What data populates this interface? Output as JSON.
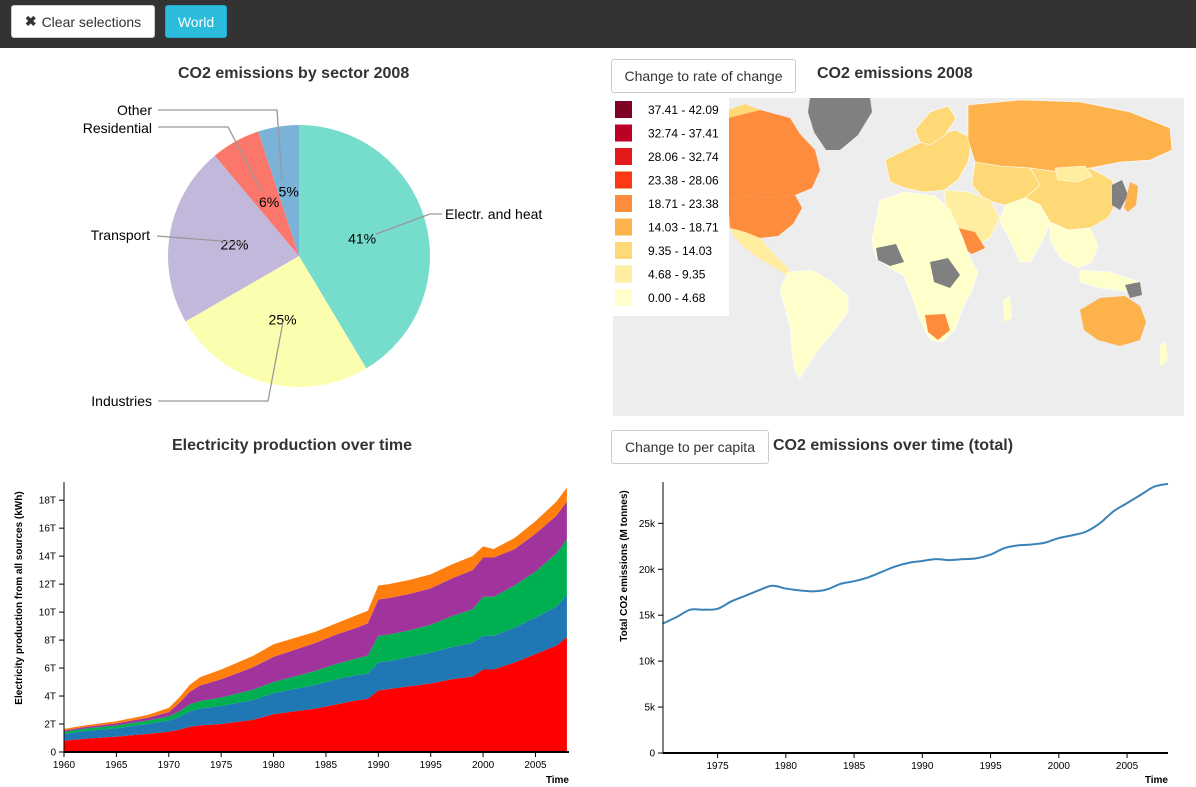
{
  "toolbar": {
    "clear_label": "Clear selections",
    "clear_icon": "times-icon",
    "world_label": "World"
  },
  "pie_panel": {
    "title": "CO2 emissions by sector 2008"
  },
  "map_panel": {
    "toggle_label": "Change to rate of change",
    "title": "CO2 emissions 2008",
    "legend": [
      {
        "label": "37.41 - 42.09",
        "color": "#800026"
      },
      {
        "label": "32.74 - 37.41",
        "color": "#bd0026"
      },
      {
        "label": "28.06 - 32.74",
        "color": "#e31a1c"
      },
      {
        "label": "23.38 - 28.06",
        "color": "#fc3a16"
      },
      {
        "label": "18.71 - 23.38",
        "color": "#fd8d3c"
      },
      {
        "label": "14.03 - 18.71",
        "color": "#feb24c"
      },
      {
        "label": "9.35 - 14.03",
        "color": "#fed976"
      },
      {
        "label": "4.68 - 9.35",
        "color": "#ffeda0"
      },
      {
        "label": "0.00 - 4.68",
        "color": "#ffffcc"
      }
    ]
  },
  "area_panel": {
    "title": "Electricity production over time"
  },
  "line_panel": {
    "toggle_label": "Change to per capita",
    "title": "CO2 emissions over time (total)"
  },
  "chart_data": [
    {
      "type": "pie",
      "title": "CO2 emissions by sector 2008",
      "slices": [
        {
          "name": "Electr. and heat",
          "value": 41,
          "label": "41%",
          "color": "#76dccc"
        },
        {
          "name": "Industries",
          "value": 25,
          "label": "25%",
          "color": "#fcfeaf"
        },
        {
          "name": "Transport",
          "value": 22,
          "label": "22%",
          "color": "#c1b8dc"
        },
        {
          "name": "Residential",
          "value": 6,
          "label": "6%",
          "color": "#fb776b"
        },
        {
          "name": "Other",
          "value": 5,
          "label": "5%",
          "color": "#7bb2d8"
        }
      ]
    },
    {
      "type": "area",
      "title": "Electricity production over time",
      "xlabel": "Time",
      "ylabel": "Electricity production from all sources (kWh)",
      "x": [
        1960,
        1962,
        1965,
        1968,
        1970,
        1971,
        1972,
        1973,
        1975,
        1978,
        1980,
        1982,
        1984,
        1986,
        1988,
        1989,
        1990,
        1991,
        1993,
        1995,
        1997,
        1999,
        2000,
        2001,
        2003,
        2005,
        2007,
        2008
      ],
      "ylim": [
        0,
        19
      ],
      "ytick_values": [
        0,
        2,
        4,
        6,
        8,
        10,
        12,
        14,
        16,
        18
      ],
      "ytick_labels": [
        "0",
        "2T",
        "4T",
        "6T",
        "8T",
        "10T",
        "12T",
        "14T",
        "16T",
        "18T"
      ],
      "xtick_values": [
        1960,
        1965,
        1970,
        1975,
        1980,
        1985,
        1990,
        1995,
        2000,
        2005
      ],
      "series": [
        {
          "color": "#ff0000",
          "values": [
            0.8,
            0.95,
            1.1,
            1.3,
            1.45,
            1.6,
            1.8,
            1.9,
            2.0,
            2.3,
            2.7,
            2.9,
            3.1,
            3.4,
            3.7,
            3.8,
            4.4,
            4.5,
            4.7,
            4.9,
            5.2,
            5.4,
            5.9,
            5.9,
            6.4,
            7.0,
            7.6,
            8.2
          ]
        },
        {
          "color": "#1f77b4",
          "values": [
            0.5,
            0.55,
            0.6,
            0.7,
            0.8,
            0.9,
            1.1,
            1.2,
            1.3,
            1.4,
            1.5,
            1.6,
            1.7,
            1.8,
            1.8,
            1.8,
            2.0,
            2.0,
            2.1,
            2.2,
            2.3,
            2.4,
            2.4,
            2.4,
            2.5,
            2.6,
            2.8,
            3.0
          ]
        },
        {
          "color": "#00b050",
          "values": [
            0.15,
            0.18,
            0.2,
            0.25,
            0.3,
            0.4,
            0.5,
            0.55,
            0.6,
            0.75,
            0.8,
            0.9,
            1.0,
            1.1,
            1.2,
            1.3,
            1.9,
            1.9,
            1.9,
            2.0,
            2.2,
            2.4,
            2.8,
            2.8,
            3.0,
            3.3,
            3.8,
            4.0
          ]
        },
        {
          "color": "#a0349c",
          "values": [
            0.1,
            0.12,
            0.15,
            0.2,
            0.3,
            0.6,
            0.9,
            1.1,
            1.3,
            1.6,
            1.8,
            1.9,
            2.0,
            2.1,
            2.2,
            2.3,
            2.6,
            2.6,
            2.6,
            2.6,
            2.7,
            2.8,
            2.8,
            2.8,
            2.6,
            2.7,
            2.7,
            2.7
          ]
        },
        {
          "color": "#ff7f0e",
          "values": [
            0.1,
            0.1,
            0.15,
            0.2,
            0.3,
            0.4,
            0.5,
            0.6,
            0.7,
            0.8,
            0.9,
            0.85,
            0.8,
            0.8,
            0.9,
            0.9,
            1.0,
            1.0,
            1.0,
            1.0,
            1.0,
            1.0,
            0.8,
            0.6,
            0.8,
            0.9,
            1.0,
            1.0
          ]
        }
      ]
    },
    {
      "type": "line",
      "title": "CO2 emissions over time (total)",
      "xlabel": "Time",
      "ylabel": "Total CO2 emissions (M tonnes)",
      "color": "#3a82b8",
      "x": [
        1971,
        1972,
        1973,
        1974,
        1975,
        1976,
        1977,
        1978,
        1979,
        1980,
        1981,
        1982,
        1983,
        1984,
        1985,
        1986,
        1987,
        1988,
        1989,
        1990,
        1991,
        1992,
        1993,
        1994,
        1995,
        1996,
        1997,
        1998,
        1999,
        2000,
        2001,
        2002,
        2003,
        2004,
        2005,
        2006,
        2007,
        2008
      ],
      "values": [
        14100,
        14800,
        15600,
        15600,
        15700,
        16500,
        17100,
        17700,
        18200,
        17900,
        17700,
        17600,
        17800,
        18400,
        18700,
        19100,
        19700,
        20300,
        20700,
        20900,
        21100,
        21000,
        21100,
        21200,
        21600,
        22300,
        22600,
        22700,
        22900,
        23400,
        23700,
        24100,
        25000,
        26300,
        27200,
        28100,
        29000,
        29300
      ],
      "ylim": [
        0,
        29500
      ],
      "ytick_values": [
        0,
        5000,
        10000,
        15000,
        20000,
        25000
      ],
      "ytick_labels": [
        "0",
        "5k",
        "10k",
        "15k",
        "20k",
        "25k"
      ],
      "xtick_values": [
        1975,
        1980,
        1985,
        1990,
        1995,
        2000,
        2005
      ]
    }
  ]
}
